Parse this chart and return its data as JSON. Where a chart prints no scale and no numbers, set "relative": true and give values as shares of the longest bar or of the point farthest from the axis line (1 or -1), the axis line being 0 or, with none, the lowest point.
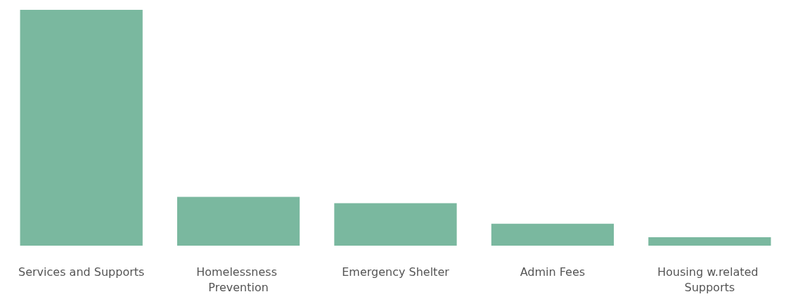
{
  "chart_data": {
    "type": "bar",
    "relative": true,
    "categories": [
      "Services and Supports",
      "Homelessness Prevention",
      "Emergency Shelter",
      "Admin Fees",
      "Housing w.related Supports"
    ],
    "values": [
      1,
      0.207,
      0.18,
      0.093,
      0.036
    ],
    "color": "#7ab89f"
  }
}
